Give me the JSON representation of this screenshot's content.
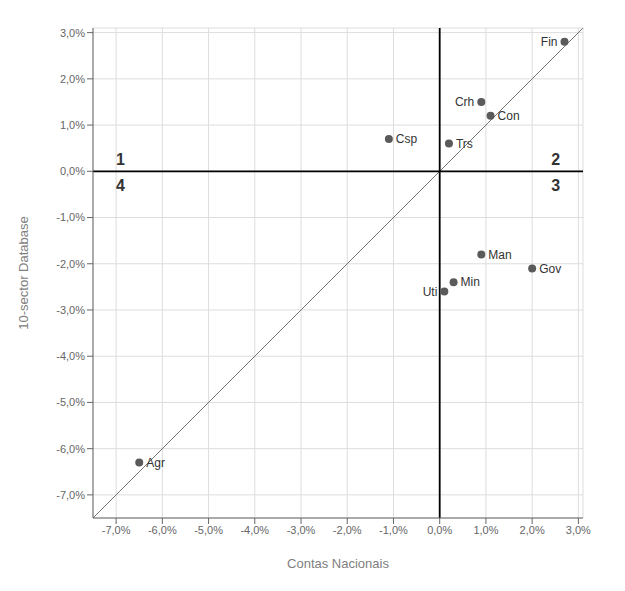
{
  "chart_data": {
    "type": "scatter",
    "xlabel": "Contas Nacionais",
    "ylabel": "10-sector Database",
    "labels": [
      "Agr",
      "Csp",
      "Fin",
      "Crh",
      "Con",
      "Trs",
      "Uti",
      "Min",
      "Man",
      "Gov"
    ],
    "x": [
      -0.065,
      -0.011,
      0.027,
      0.009,
      0.011,
      0.002,
      0.001,
      0.003,
      0.009,
      0.02
    ],
    "values": [
      -0.063,
      0.007,
      0.028,
      0.015,
      0.012,
      0.006,
      -0.026,
      -0.024,
      -0.018,
      -0.021
    ],
    "color": "#5a5a5a",
    "xlim": [
      -0.075,
      0.031
    ],
    "ylim": [
      -0.075,
      0.031
    ],
    "xticks": [
      {
        "value": -0.07,
        "label": "-7,0%"
      },
      {
        "value": -0.06,
        "label": "-6,0%"
      },
      {
        "value": -0.05,
        "label": "-5,0%"
      },
      {
        "value": -0.04,
        "label": "-4,0%"
      },
      {
        "value": -0.03,
        "label": "-3,0%"
      },
      {
        "value": -0.02,
        "label": "-2,0%"
      },
      {
        "value": -0.01,
        "label": "-1,0%"
      },
      {
        "value": 0.0,
        "label": "0,0%"
      },
      {
        "value": 0.01,
        "label": "1,0%"
      },
      {
        "value": 0.02,
        "label": "2,0%"
      },
      {
        "value": 0.03,
        "label": "3,0%"
      }
    ],
    "yticks": [
      {
        "value": -0.07,
        "label": "-7,0%"
      },
      {
        "value": -0.06,
        "label": "-6,0%"
      },
      {
        "value": -0.05,
        "label": "-5,0%"
      },
      {
        "value": -0.04,
        "label": "-4,0%"
      },
      {
        "value": -0.03,
        "label": "-3,0%"
      },
      {
        "value": -0.02,
        "label": "-2,0%"
      },
      {
        "value": -0.01,
        "label": "-1,0%"
      },
      {
        "value": 0.0,
        "label": "0,0%"
      },
      {
        "value": 0.01,
        "label": "1,0%"
      },
      {
        "value": 0.02,
        "label": "2,0%"
      },
      {
        "value": 0.03,
        "label": "3,0%"
      }
    ],
    "annotations": [
      "1",
      "2",
      "3",
      "4"
    ],
    "grid": true
  }
}
